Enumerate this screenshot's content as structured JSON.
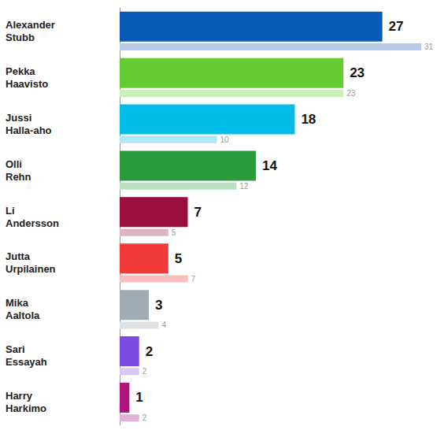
{
  "chart_data": {
    "type": "bar",
    "orientation": "horizontal",
    "categories": [
      "Alexander Stubb",
      "Pekka Haavisto",
      "Jussi Halla-aho",
      "Olli Rehn",
      "Li Andersson",
      "Jutta Urpilainen",
      "Mika Aaltola",
      "Sari Essayah",
      "Harry Harkimo"
    ],
    "series": [
      {
        "colors": [
          "#0a5bb8",
          "#66cc33",
          "#00bde8",
          "#2a9a3c",
          "#9a0f40",
          "#f23a3a",
          "#a0aab2",
          "#7b4be0",
          "#b0147a"
        ],
        "values": [
          27,
          23,
          18,
          14,
          7,
          5,
          3,
          2,
          1
        ]
      },
      {
        "colors": [
          "#b7cbe8",
          "#cdeeb9",
          "#aee8f6",
          "#b9dfbf",
          "#e0b3c4",
          "#fbbcbc",
          "#dde1e4",
          "#d7c8f6",
          "#e3b1d3"
        ],
        "values": [
          31,
          23,
          10,
          12,
          5,
          7,
          4,
          2,
          2
        ]
      }
    ],
    "xlim": [
      0,
      31
    ],
    "grid": false,
    "data_labels": true,
    "tick_labels": "y"
  }
}
